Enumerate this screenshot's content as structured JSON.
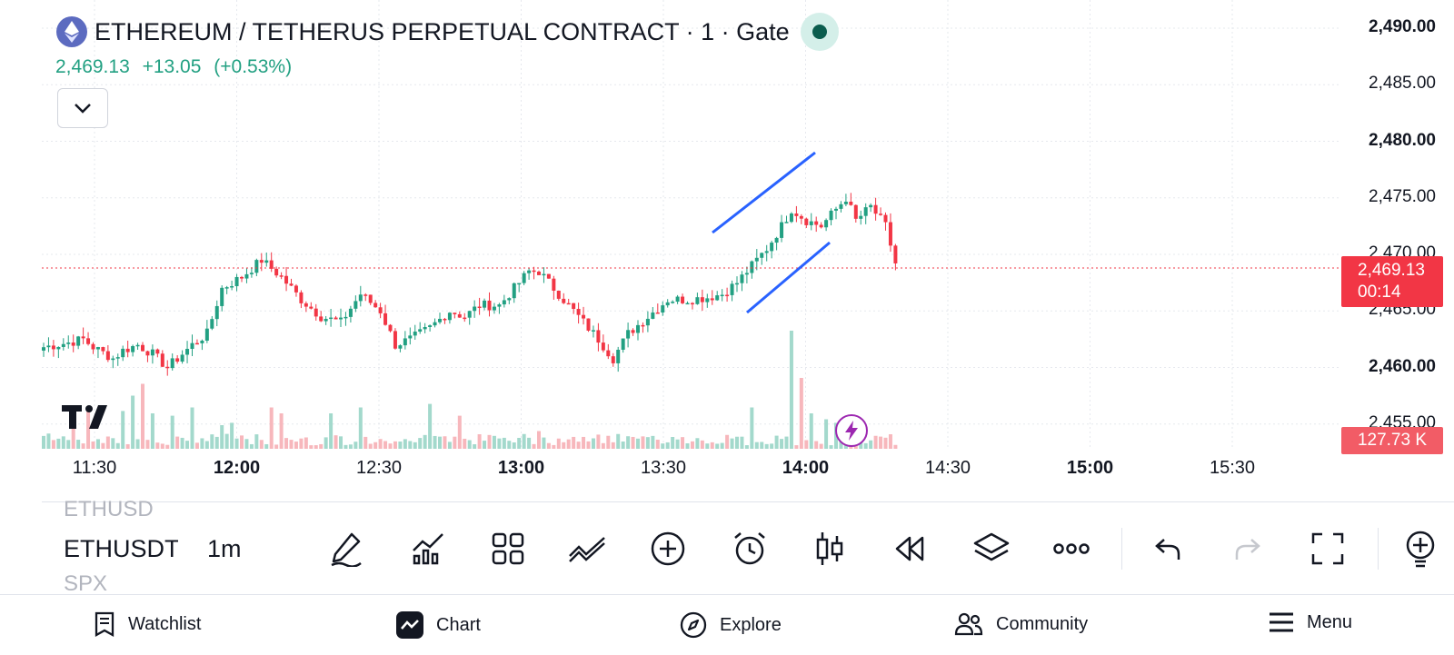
{
  "header": {
    "logo_icon": "ethereum-icon",
    "title": "ETHEREUM / TETHERUS PERPETUAL CONTRACT · 1 · Gate",
    "market_status_color": "#0b5d4e",
    "last_price": "2,469.13",
    "change": "+13.05",
    "change_pct": "(+0.53%)",
    "change_color": "#22a082"
  },
  "chart_data": {
    "type": "candlestick",
    "symbol": "ETHUSDT",
    "interval": "1m",
    "y_ticks": [
      "2,490.00",
      "2,485.00",
      "2,480.00",
      "2,475.00",
      "2,470.00",
      "2,465.00",
      "2,460.00",
      "2,455.00"
    ],
    "y_ticks_bold": [
      "2,490.00",
      "2,480.00",
      "2,460.00"
    ],
    "ylim": [
      2452.5,
      2491
    ],
    "x_ticks": [
      "11:30",
      "12:00",
      "12:30",
      "13:00",
      "13:30",
      "14:00",
      "14:30",
      "15:00",
      "15:30"
    ],
    "x_ticks_bold": [
      "12:00",
      "13:00",
      "14:00",
      "15:00"
    ],
    "grid": true,
    "up_color": "#22a082",
    "down_color": "#f23645",
    "last_price_tag": "2,469.13",
    "countdown": "00:14",
    "volume_tag": "127.73 K",
    "close_path": [
      [
        0,
        2461.8
      ],
      [
        5,
        2462.2
      ],
      [
        8,
        2462.5
      ],
      [
        10,
        2461.8
      ],
      [
        14,
        2460.8
      ],
      [
        16,
        2461.5
      ],
      [
        19,
        2462.0
      ],
      [
        22,
        2461.2
      ],
      [
        25,
        2460.0
      ],
      [
        30,
        2462.0
      ],
      [
        33,
        2463.0
      ],
      [
        36,
        2467.0
      ],
      [
        40,
        2468.0
      ],
      [
        44,
        2469.5
      ],
      [
        48,
        2468.0
      ],
      [
        52,
        2466.0
      ],
      [
        56,
        2464.5
      ],
      [
        60,
        2464.0
      ],
      [
        64,
        2466.5
      ],
      [
        68,
        2465.0
      ],
      [
        71,
        2462.0
      ],
      [
        74,
        2462.5
      ],
      [
        78,
        2463.5
      ],
      [
        82,
        2465.0
      ],
      [
        85,
        2464.5
      ],
      [
        88,
        2465.5
      ],
      [
        92,
        2465.5
      ],
      [
        95,
        2467.0
      ],
      [
        98,
        2468.5
      ],
      [
        100,
        2468.5
      ],
      [
        104,
        2466.5
      ],
      [
        108,
        2464.5
      ],
      [
        112,
        2462.5
      ],
      [
        115,
        2460.8
      ],
      [
        118,
        2463.0
      ],
      [
        122,
        2464.5
      ],
      [
        126,
        2466.0
      ],
      [
        130,
        2466.0
      ],
      [
        134,
        2466.2
      ],
      [
        137,
        2466.5
      ],
      [
        140,
        2467.5
      ],
      [
        143,
        2469.0
      ],
      [
        146,
        2470.5
      ],
      [
        149,
        2472.5
      ],
      [
        151,
        2474.0
      ],
      [
        154,
        2473.0
      ],
      [
        157,
        2472.5
      ],
      [
        160,
        2474.0
      ],
      [
        162,
        2475.0
      ],
      [
        164,
        2473.0
      ],
      [
        167,
        2474.2
      ],
      [
        170,
        2472.5
      ],
      [
        172,
        2469.2
      ]
    ],
    "volume_spikes": [
      [
        6,
        0.25
      ],
      [
        9,
        0.35
      ],
      [
        16,
        0.32
      ],
      [
        18,
        0.45
      ],
      [
        20,
        0.55
      ],
      [
        22,
        0.3
      ],
      [
        26,
        0.28
      ],
      [
        30,
        0.35
      ],
      [
        36,
        0.2
      ],
      [
        38,
        0.22
      ],
      [
        46,
        0.35
      ],
      [
        48,
        0.3
      ],
      [
        58,
        0.3
      ],
      [
        64,
        0.35
      ],
      [
        78,
        0.38
      ],
      [
        84,
        0.28
      ],
      [
        100,
        0.15
      ],
      [
        112,
        0.12
      ],
      [
        127,
        0.1
      ],
      [
        143,
        0.35
      ],
      [
        151,
        1.0
      ],
      [
        153,
        0.6
      ],
      [
        155,
        0.3
      ],
      [
        158,
        0.25
      ],
      [
        160,
        0.22
      ],
      [
        165,
        0.25
      ]
    ]
  },
  "toolbar": {
    "prev_symbol": "ETHUSD",
    "symbol": "ETHUSDT",
    "next_symbol": "SPX",
    "interval": "1m",
    "icons": [
      "pencil-draw-icon",
      "indicators-icon",
      "layout-grid-icon",
      "trend-line-icon",
      "add-circle-icon",
      "alarm-icon",
      "candle-style-icon",
      "replay-icon",
      "layers-icon",
      "more-icon",
      "undo-icon",
      "redo-icon",
      "fullscreen-icon",
      "hint-bulb-icon"
    ]
  },
  "bottom_nav": {
    "watchlist": "Watchlist",
    "chart": "Chart",
    "explore": "Explore",
    "community": "Community",
    "menu": "Menu"
  }
}
